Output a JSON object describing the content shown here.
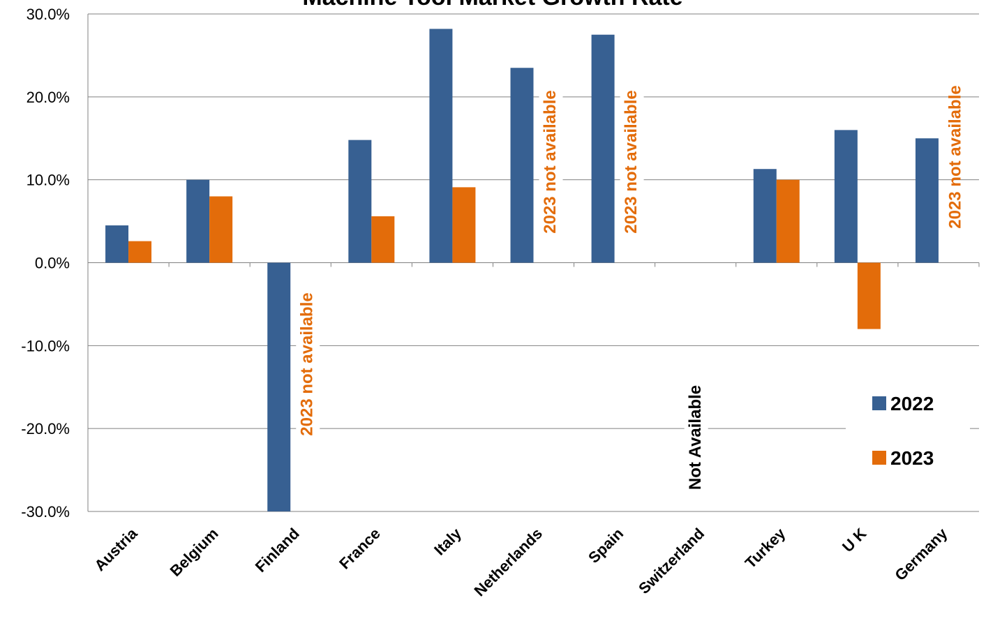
{
  "chart_data": {
    "type": "bar",
    "title": "Machine Tool Market Growth Rate",
    "categories": [
      "Austria",
      "Belgium",
      "Finland",
      "France",
      "Italy",
      "Netherlands",
      "Spain",
      "Switzerland",
      "Turkey",
      "U K",
      "Germany"
    ],
    "series": [
      {
        "name": "2022",
        "color": "#376092",
        "values": [
          4.5,
          10.0,
          -30.0,
          14.8,
          28.2,
          23.5,
          27.5,
          null,
          11.3,
          16.0,
          15.0
        ]
      },
      {
        "name": "2023",
        "color": "#E36C0A",
        "values": [
          2.6,
          8.0,
          null,
          5.6,
          9.1,
          null,
          null,
          null,
          10.0,
          -8.0,
          null
        ]
      }
    ],
    "ylim": [
      -30,
      30
    ],
    "yticks": [
      30,
      20,
      10,
      0,
      -10,
      -20,
      -30
    ],
    "ytick_labels": [
      "30.0%",
      "20.0%",
      "10.0%",
      "0.0%",
      "-10.0%",
      "-20.0%",
      "-30.0%"
    ],
    "grid": true,
    "legend_position": "right",
    "annotations": [
      {
        "category": "Finland",
        "text": "2023 not available",
        "color": "#E36C0A"
      },
      {
        "category": "Netherlands",
        "text": "2023 not available",
        "color": "#E36C0A"
      },
      {
        "category": "Spain",
        "text": "2023 not available",
        "color": "#E36C0A"
      },
      {
        "category": "Germany",
        "text": "2023 not available",
        "color": "#E36C0A"
      },
      {
        "category": "Switzerland",
        "text": "Not Available",
        "color": "#000000"
      }
    ]
  }
}
